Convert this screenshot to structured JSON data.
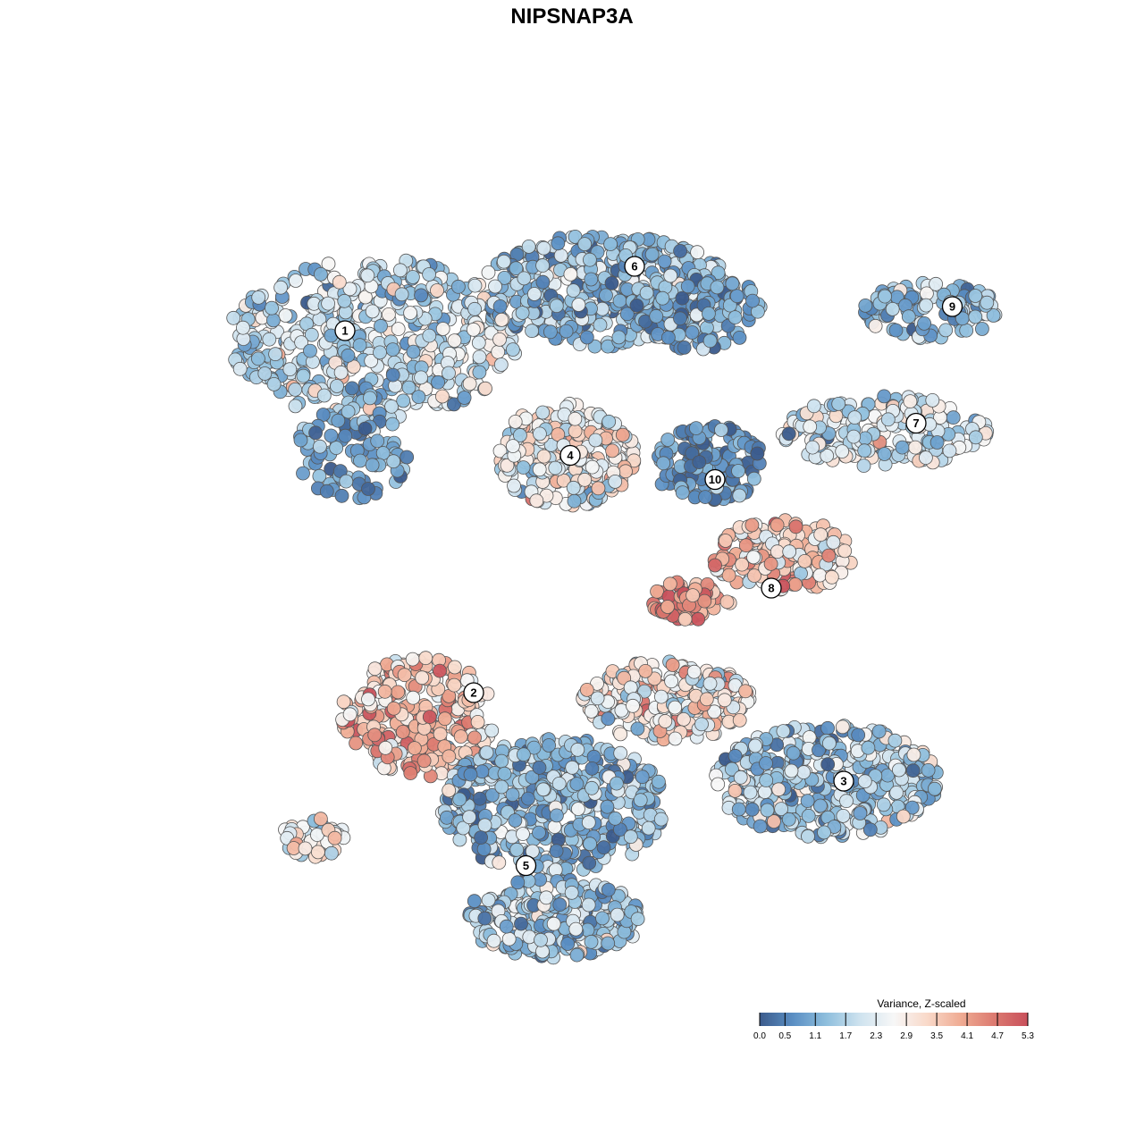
{
  "chart_data": {
    "type": "scatter",
    "title": "NIPSNAP3A",
    "legend": {
      "title": "Variance, Z-scaled",
      "placement": "bottom-right",
      "ticks": [
        "0.0",
        "0.5",
        "1.1",
        "1.7",
        "2.3",
        "2.9",
        "3.5",
        "4.1",
        "4.7",
        "5.3"
      ],
      "range": [
        0.0,
        5.3
      ],
      "colors": [
        "#3b5b8c",
        "#5b8fc4",
        "#8fbfdd",
        "#cfe3ef",
        "#f7f7f7",
        "#f9d9c9",
        "#efab93",
        "#dc7a70",
        "#c8505b"
      ]
    },
    "clusters": [
      {
        "label": "1",
        "x": -0.62,
        "y": 0.6
      },
      {
        "label": "2",
        "x": -0.3,
        "y": -0.3
      },
      {
        "label": "3",
        "x": 0.62,
        "y": -0.52
      },
      {
        "label": "4",
        "x": -0.06,
        "y": 0.29
      },
      {
        "label": "5",
        "x": -0.17,
        "y": -0.73
      },
      {
        "label": "6",
        "x": 0.1,
        "y": 0.76
      },
      {
        "label": "7",
        "x": 0.8,
        "y": 0.37
      },
      {
        "label": "8",
        "x": 0.44,
        "y": -0.04
      },
      {
        "label": "9",
        "x": 0.89,
        "y": 0.66
      },
      {
        "label": "10",
        "x": 0.3,
        "y": 0.23
      }
    ],
    "regions": [
      {
        "cluster": "1",
        "cx": -0.55,
        "cy": 0.58,
        "rx": 0.36,
        "ry": 0.2,
        "n": 480,
        "mean": 1.9,
        "sd": 0.75
      },
      {
        "cluster": "1",
        "cx": -0.6,
        "cy": 0.3,
        "rx": 0.14,
        "ry": 0.12,
        "n": 90,
        "mean": 0.9,
        "sd": 0.5
      },
      {
        "cluster": "6",
        "cx": 0.03,
        "cy": 0.7,
        "rx": 0.32,
        "ry": 0.14,
        "n": 420,
        "mean": 1.3,
        "sd": 0.7
      },
      {
        "cluster": "6",
        "cx": 0.25,
        "cy": 0.65,
        "rx": 0.17,
        "ry": 0.1,
        "n": 130,
        "mean": 1.0,
        "sd": 0.6
      },
      {
        "cluster": "9",
        "cx": 0.84,
        "cy": 0.65,
        "rx": 0.17,
        "ry": 0.07,
        "n": 120,
        "mean": 1.4,
        "sd": 0.6
      },
      {
        "cluster": "7",
        "cx": 0.72,
        "cy": 0.35,
        "rx": 0.26,
        "ry": 0.09,
        "n": 190,
        "mean": 2.0,
        "sd": 0.7
      },
      {
        "cluster": "4",
        "cx": -0.07,
        "cy": 0.29,
        "rx": 0.17,
        "ry": 0.13,
        "n": 260,
        "mean": 2.6,
        "sd": 0.8
      },
      {
        "cluster": "10",
        "cx": 0.28,
        "cy": 0.27,
        "rx": 0.14,
        "ry": 0.1,
        "n": 130,
        "mean": 0.7,
        "sd": 0.6
      },
      {
        "cluster": "8",
        "cx": 0.47,
        "cy": 0.04,
        "rx": 0.18,
        "ry": 0.09,
        "n": 170,
        "mean": 3.3,
        "sd": 0.9
      },
      {
        "cluster": "8",
        "cx": 0.24,
        "cy": -0.07,
        "rx": 0.1,
        "ry": 0.05,
        "n": 60,
        "mean": 4.3,
        "sd": 0.7
      },
      {
        "cluster": "2",
        "cx": -0.44,
        "cy": -0.36,
        "rx": 0.19,
        "ry": 0.15,
        "n": 260,
        "mean": 3.5,
        "sd": 0.8
      },
      {
        "cluster": "2",
        "cx": -0.7,
        "cy": -0.66,
        "rx": 0.08,
        "ry": 0.05,
        "n": 40,
        "mean": 2.8,
        "sd": 0.8
      },
      {
        "cluster": "3",
        "cx": 0.18,
        "cy": -0.32,
        "rx": 0.21,
        "ry": 0.1,
        "n": 220,
        "mean": 2.9,
        "sd": 0.9
      },
      {
        "cluster": "3",
        "cx": 0.58,
        "cy": -0.52,
        "rx": 0.28,
        "ry": 0.14,
        "n": 380,
        "mean": 1.6,
        "sd": 0.8
      },
      {
        "cluster": "5",
        "cx": -0.1,
        "cy": -0.58,
        "rx": 0.28,
        "ry": 0.17,
        "n": 420,
        "mean": 1.3,
        "sd": 0.7
      },
      {
        "cluster": "5",
        "cx": -0.1,
        "cy": -0.86,
        "rx": 0.22,
        "ry": 0.1,
        "n": 260,
        "mean": 1.6,
        "sd": 0.7
      }
    ]
  }
}
